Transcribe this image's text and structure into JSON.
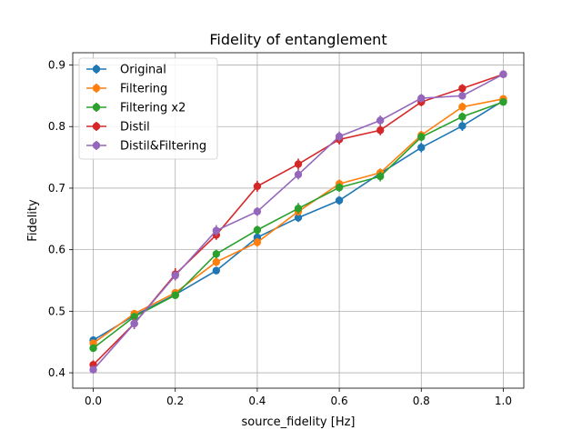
{
  "chart_data": {
    "type": "line",
    "title": "Fidelity of entanglement",
    "xlabel": "source_fidelity [Hz]",
    "ylabel": "Fidelity",
    "xlim": [
      -0.05,
      1.05
    ],
    "ylim": [
      0.375,
      0.92
    ],
    "xticks": [
      0.0,
      0.2,
      0.4,
      0.6,
      0.8,
      1.0
    ],
    "xtick_labels": [
      "0.0",
      "0.2",
      "0.4",
      "0.6",
      "0.8",
      "1.0"
    ],
    "yticks": [
      0.4,
      0.5,
      0.6,
      0.7,
      0.8,
      0.9
    ],
    "ytick_labels": [
      "0.4",
      "0.5",
      "0.6",
      "0.7",
      "0.8",
      "0.9"
    ],
    "grid": true,
    "legend_position": "upper-left",
    "x": [
      0.0,
      0.1,
      0.2,
      0.3,
      0.4,
      0.5,
      0.6,
      0.7,
      0.8,
      0.9,
      1.0
    ],
    "series": [
      {
        "name": "Original",
        "color": "#1f77b4",
        "values": [
          0.453,
          0.493,
          0.527,
          0.566,
          0.62,
          0.652,
          0.68,
          0.724,
          0.766,
          0.801,
          0.842
        ],
        "errors": [
          0.006,
          0.006,
          0.006,
          0.006,
          0.006,
          0.007,
          0.007,
          0.007,
          0.008,
          0.008,
          0.006
        ]
      },
      {
        "name": "Filtering",
        "color": "#ff7f0e",
        "values": [
          0.448,
          0.496,
          0.53,
          0.58,
          0.612,
          0.662,
          0.707,
          0.725,
          0.786,
          0.832,
          0.845
        ],
        "errors": [
          0.006,
          0.006,
          0.006,
          0.007,
          0.007,
          0.007,
          0.007,
          0.007,
          0.007,
          0.007,
          0.006
        ]
      },
      {
        "name": "Filtering x2",
        "color": "#2ca02c",
        "values": [
          0.44,
          0.491,
          0.526,
          0.593,
          0.632,
          0.667,
          0.701,
          0.719,
          0.783,
          0.816,
          0.84
        ],
        "errors": [
          0.006,
          0.006,
          0.006,
          0.007,
          0.007,
          0.009,
          0.007,
          0.008,
          0.007,
          0.007,
          0.006
        ]
      },
      {
        "name": "Distil",
        "color": "#d62728",
        "values": [
          0.413,
          0.48,
          0.56,
          0.624,
          0.703,
          0.739,
          0.779,
          0.794,
          0.84,
          0.862,
          0.885
        ],
        "errors": [
          0.007,
          0.009,
          0.01,
          0.008,
          0.009,
          0.009,
          0.008,
          0.008,
          0.007,
          0.007,
          0.006
        ]
      },
      {
        "name": "Distil&Filtering",
        "color": "#9467bd",
        "values": [
          0.405,
          0.48,
          0.558,
          0.631,
          0.662,
          0.722,
          0.784,
          0.81,
          0.846,
          0.85,
          0.885
        ],
        "errors": [
          0.006,
          0.008,
          0.007,
          0.009,
          0.007,
          0.008,
          0.008,
          0.008,
          0.007,
          0.006,
          0.006
        ]
      }
    ]
  }
}
